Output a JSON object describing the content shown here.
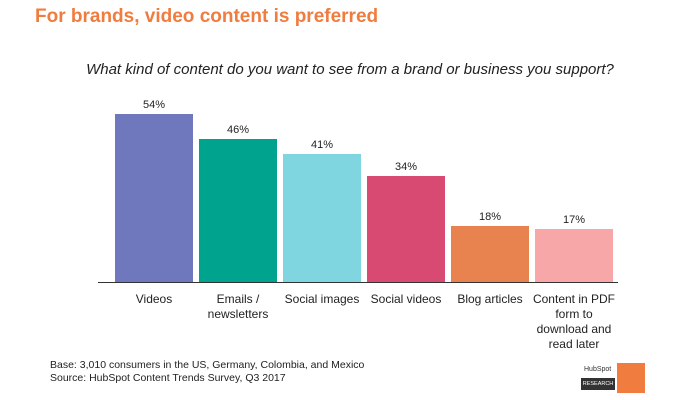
{
  "chart_data": {
    "type": "bar",
    "title": "For brands, video content is preferred",
    "subtitle": "What kind of content do you want to see from a brand or business you support?",
    "categories": [
      "Videos",
      "Emails / newsletters",
      "Social images",
      "Social videos",
      "Blog articles",
      "Content in PDF form to download and read later"
    ],
    "values": [
      54,
      46,
      41,
      34,
      18,
      17
    ],
    "value_labels": [
      "54%",
      "46%",
      "41%",
      "34%",
      "18%",
      "17%"
    ],
    "colors": [
      "#6f78bc",
      "#00a48e",
      "#80d6e0",
      "#d94a72",
      "#e8834f",
      "#f8a7a9"
    ],
    "notes": [
      "Base: 3,010 consumers in the US, Germany, Colombia, and Mexico",
      "Source: HubSpot Content Trends Survey, Q3 2017"
    ]
  },
  "logo": {
    "brand": "HubSpot",
    "label": "RESEARCH"
  }
}
